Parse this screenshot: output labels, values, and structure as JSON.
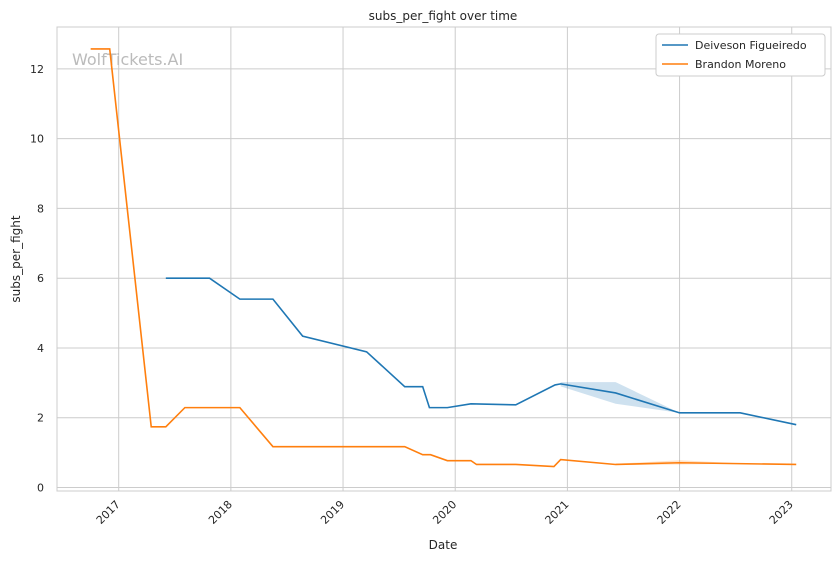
{
  "chart_data": {
    "type": "line",
    "title": "subs_per_fight over time",
    "xlabel": "Date",
    "ylabel": "subs_per_fight",
    "watermark": "WolfTickets.AI",
    "xlim": [
      2016.45,
      2023.35
    ],
    "ylim": [
      -0.1,
      13.2
    ],
    "xticks": [
      2017,
      2018,
      2019,
      2020,
      2021,
      2022,
      2023
    ],
    "xtick_labels": [
      "2017",
      "2018",
      "2019",
      "2020",
      "2021",
      "2022",
      "2023"
    ],
    "yticks": [
      0,
      2,
      4,
      6,
      8,
      10,
      12
    ],
    "ytick_labels": [
      "0",
      "2",
      "4",
      "6",
      "8",
      "10",
      "12"
    ],
    "grid": true,
    "legend_position": "top-right",
    "series": [
      {
        "name": "Deiveson Figueiredo",
        "color": "#1f77b4",
        "x": [
          2017.42,
          2017.81,
          2018.08,
          2018.375,
          2018.64,
          2019.21,
          2019.55,
          2019.71,
          2019.77,
          2019.93,
          2020.14,
          2020.54,
          2020.89,
          2020.94,
          2021.43,
          2022.0,
          2022.54,
          2023.04
        ],
        "y": [
          6.0,
          6.0,
          5.4,
          5.4,
          4.34,
          3.89,
          2.89,
          2.89,
          2.29,
          2.29,
          2.4,
          2.37,
          2.94,
          2.97,
          2.71,
          2.14,
          2.14,
          1.8
        ],
        "band": {
          "x": [
            2020.94,
            2021.43,
            2022.0
          ],
          "lower": [
            2.9,
            2.4,
            2.14
          ],
          "upper": [
            3.02,
            3.02,
            2.14
          ]
        }
      },
      {
        "name": "Brandon Moreno",
        "color": "#ff7f0e",
        "x": [
          2016.75,
          2016.92,
          2017.29,
          2017.42,
          2017.59,
          2018.08,
          2018.375,
          2019.55,
          2019.71,
          2019.78,
          2019.93,
          2020.14,
          2020.19,
          2020.54,
          2020.88,
          2020.94,
          2021.43,
          2022.0,
          2023.04
        ],
        "y": [
          12.57,
          12.57,
          1.74,
          1.74,
          2.29,
          2.29,
          1.17,
          1.17,
          0.94,
          0.94,
          0.77,
          0.77,
          0.66,
          0.66,
          0.6,
          0.8,
          0.66,
          0.71,
          0.66
        ],
        "band": {
          "x": [
            2021.43,
            2022.0,
            2022.5
          ],
          "lower": [
            0.64,
            0.66,
            0.68
          ],
          "upper": [
            0.68,
            0.78,
            0.7
          ]
        }
      }
    ]
  }
}
